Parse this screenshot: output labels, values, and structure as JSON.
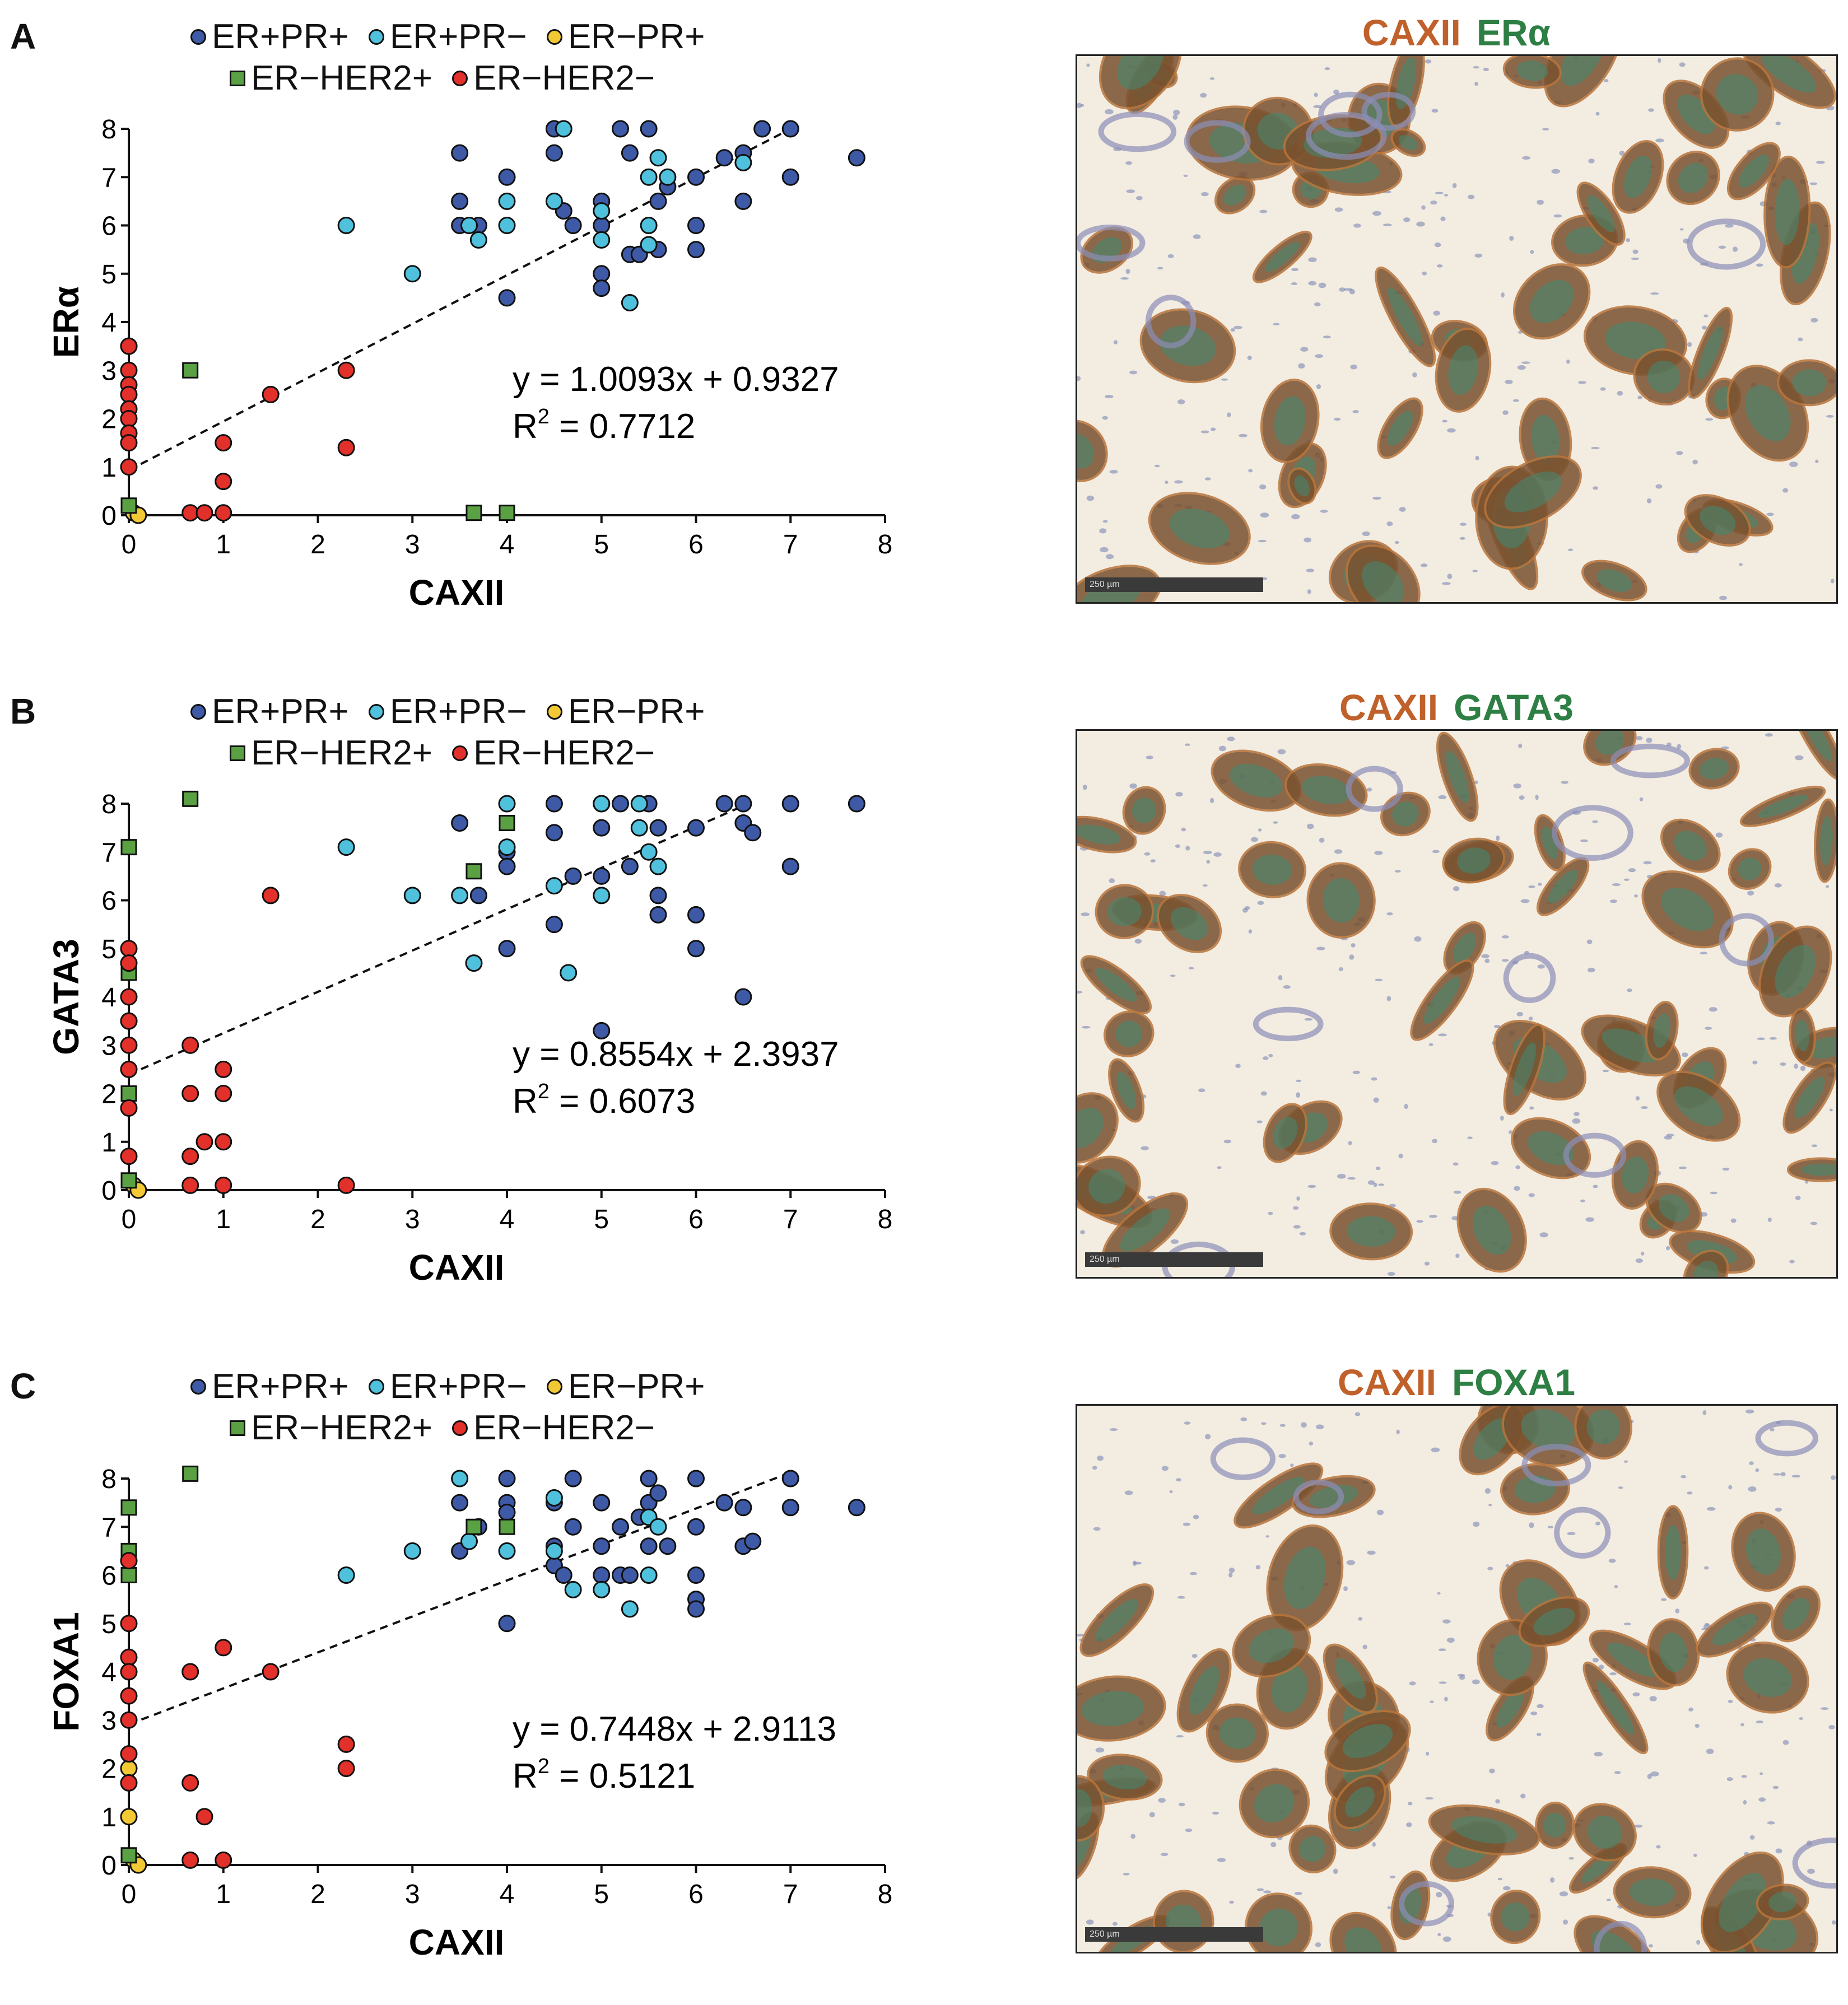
{
  "colors": {
    "ERpPRp": "#3e5aa6",
    "ERpPRn": "#4fc1dc",
    "ERnPRp": "#f2c935",
    "ERnHER2p": "#5aa144",
    "ERnHER2n": "#e2302a",
    "caxii_text": "#c0612b",
    "marker_text": "#2e7f44"
  },
  "legend": [
    {
      "key": "ERpPRp",
      "label": "ER+PR+",
      "shape": "circle"
    },
    {
      "key": "ERpPRn",
      "label": "ER+PR−",
      "shape": "circle"
    },
    {
      "key": "ERnPRp",
      "label": "ER−PR+",
      "shape": "circle"
    },
    {
      "key": "ERnHER2p",
      "label": "ER−HER2+",
      "shape": "square"
    },
    {
      "key": "ERnHER2n",
      "label": "ER−HER2−",
      "shape": "circle"
    }
  ],
  "panels": [
    {
      "letter": "A",
      "micro_title_a": "CAXII",
      "micro_title_b": "ERα",
      "scalebar": "250 µm"
    },
    {
      "letter": "B",
      "micro_title_a": "CAXII",
      "micro_title_b": "GATA3",
      "scalebar": "250 µm"
    },
    {
      "letter": "C",
      "micro_title_a": "CAXII",
      "micro_title_b": "FOXA1",
      "scalebar": "250 µm"
    }
  ],
  "chart_data": [
    {
      "type": "scatter",
      "xlabel": "CAXII",
      "ylabel": "ERα",
      "xlim": [
        0,
        8
      ],
      "ylim": [
        0,
        8
      ],
      "xticks": [
        "0",
        "1",
        "2",
        "3",
        "4",
        "5",
        "6",
        "7",
        "8"
      ],
      "yticks": [
        "0",
        "1",
        "2",
        "3",
        "4",
        "5",
        "6",
        "7",
        "8"
      ],
      "regression": {
        "slope": 1.0093,
        "intercept": 0.9327,
        "x_range": [
          0,
          7
        ]
      },
      "equation": "y = 1.0093x + 0.9327",
      "r2_label": "R",
      "r2_sup": "2",
      "r2_value": " = 0.7712",
      "series": [
        {
          "name": "ER+PR+",
          "key": "ERpPRp",
          "shape": "circle",
          "points": [
            [
              3.5,
              7.5
            ],
            [
              3.5,
              6.5
            ],
            [
              3.5,
              6
            ],
            [
              3.7,
              6
            ],
            [
              4,
              7
            ],
            [
              4,
              4.5
            ],
            [
              4.5,
              8
            ],
            [
              4.5,
              7.5
            ],
            [
              4.6,
              6.3
            ],
            [
              4.7,
              6
            ],
            [
              5,
              6.5
            ],
            [
              5,
              6
            ],
            [
              5,
              5
            ],
            [
              5,
              4.7
            ],
            [
              5.2,
              8
            ],
            [
              5.3,
              7.5
            ],
            [
              5.3,
              5.4
            ],
            [
              5.4,
              5.4
            ],
            [
              5.5,
              8
            ],
            [
              5.6,
              6.5
            ],
            [
              5.6,
              5.5
            ],
            [
              5.7,
              6.8
            ],
            [
              6,
              7
            ],
            [
              6,
              6
            ],
            [
              6,
              5.5
            ],
            [
              6.3,
              7.4
            ],
            [
              6.5,
              7.5
            ],
            [
              6.5,
              6.5
            ],
            [
              6.7,
              8
            ],
            [
              7,
              8
            ],
            [
              7,
              7
            ],
            [
              7.7,
              7.4
            ]
          ]
        },
        {
          "name": "ER+PR−",
          "key": "ERpPRn",
          "shape": "circle",
          "points": [
            [
              2.3,
              6
            ],
            [
              3,
              5
            ],
            [
              3.6,
              6
            ],
            [
              3.7,
              5.7
            ],
            [
              4,
              6.5
            ],
            [
              4,
              6
            ],
            [
              4.5,
              6.5
            ],
            [
              4.6,
              8
            ],
            [
              5,
              6.3
            ],
            [
              5,
              5.7
            ],
            [
              5.3,
              4.4
            ],
            [
              5.5,
              7
            ],
            [
              5.5,
              6
            ],
            [
              5.5,
              5.6
            ],
            [
              5.6,
              7.4
            ],
            [
              5.7,
              7
            ],
            [
              6.5,
              7.3
            ]
          ]
        },
        {
          "name": "ER−PR+",
          "key": "ERnPRp",
          "shape": "circle",
          "points": [
            [
              0,
              3.5
            ],
            [
              0.05,
              0.05
            ],
            [
              0.1,
              0
            ]
          ]
        },
        {
          "name": "ER−HER2+",
          "key": "ERnHER2p",
          "shape": "square",
          "points": [
            [
              0,
              0.2
            ],
            [
              0.65,
              3
            ],
            [
              3.65,
              0.05
            ],
            [
              4,
              0.05
            ]
          ]
        },
        {
          "name": "ER−HER2−",
          "key": "ERnHER2n",
          "shape": "circle",
          "points": [
            [
              0,
              3.5
            ],
            [
              0,
              3
            ],
            [
              0,
              2.7
            ],
            [
              0,
              2.5
            ],
            [
              0,
              2.2
            ],
            [
              0,
              2
            ],
            [
              0,
              1.7
            ],
            [
              0,
              1.5
            ],
            [
              0,
              1
            ],
            [
              0.65,
              0.05
            ],
            [
              0.8,
              0.05
            ],
            [
              1,
              0.05
            ],
            [
              1,
              0.7
            ],
            [
              1,
              1.5
            ],
            [
              1.5,
              2.5
            ],
            [
              2.3,
              3
            ],
            [
              2.3,
              1.4
            ]
          ]
        }
      ]
    },
    {
      "type": "scatter",
      "xlabel": "CAXII",
      "ylabel": "GATA3",
      "xlim": [
        0,
        8
      ],
      "ylim": [
        0,
        8
      ],
      "xticks": [
        "0",
        "1",
        "2",
        "3",
        "4",
        "5",
        "6",
        "7",
        "8"
      ],
      "yticks": [
        "0",
        "1",
        "2",
        "3",
        "4",
        "5",
        "6",
        "7",
        "8"
      ],
      "regression": {
        "slope": 0.8554,
        "intercept": 2.3937,
        "x_range": [
          0,
          6.5
        ]
      },
      "equation": "y = 0.8554x + 2.3937",
      "r2_label": "R",
      "r2_sup": "2",
      "r2_value": " = 0.6073",
      "series": [
        {
          "name": "ER+PR+",
          "key": "ERpPRp",
          "shape": "circle",
          "points": [
            [
              3.5,
              7.6
            ],
            [
              3.7,
              6.1
            ],
            [
              4,
              7
            ],
            [
              4,
              6.7
            ],
            [
              4,
              5
            ],
            [
              4.5,
              8
            ],
            [
              4.5,
              7.4
            ],
            [
              4.5,
              5.5
            ],
            [
              4.7,
              6.5
            ],
            [
              5,
              8
            ],
            [
              5,
              7.5
            ],
            [
              5,
              6.5
            ],
            [
              5,
              3.3
            ],
            [
              5.2,
              8
            ],
            [
              5.3,
              6.7
            ],
            [
              5.5,
              8
            ],
            [
              5.6,
              7.5
            ],
            [
              5.6,
              6.1
            ],
            [
              5.6,
              5.7
            ],
            [
              6,
              7.5
            ],
            [
              6,
              5.7
            ],
            [
              6,
              5
            ],
            [
              6.3,
              8
            ],
            [
              6.5,
              8
            ],
            [
              6.5,
              7.6
            ],
            [
              6.5,
              4
            ],
            [
              6.6,
              7.4
            ],
            [
              7,
              8
            ],
            [
              7,
              6.7
            ],
            [
              7.7,
              8
            ]
          ]
        },
        {
          "name": "ER+PR−",
          "key": "ERpPRn",
          "shape": "circle",
          "points": [
            [
              2.3,
              7.1
            ],
            [
              3,
              6.1
            ],
            [
              3.5,
              6.1
            ],
            [
              3.65,
              4.7
            ],
            [
              4,
              8
            ],
            [
              4,
              7.1
            ],
            [
              4.5,
              6.3
            ],
            [
              4.65,
              4.5
            ],
            [
              5,
              8
            ],
            [
              5,
              6.1
            ],
            [
              5.4,
              8
            ],
            [
              5.4,
              7.5
            ],
            [
              5.5,
              7
            ],
            [
              5.6,
              6.7
            ]
          ]
        },
        {
          "name": "ER−PR+",
          "key": "ERnPRp",
          "shape": "circle",
          "points": [
            [
              0,
              3.5
            ],
            [
              0.05,
              0.1
            ],
            [
              0.1,
              0
            ]
          ]
        },
        {
          "name": "ER−HER2+",
          "key": "ERnHER2p",
          "shape": "square",
          "points": [
            [
              0,
              7.1
            ],
            [
              0,
              4.5
            ],
            [
              0,
              2
            ],
            [
              0,
              0.2
            ],
            [
              0.65,
              8.1
            ],
            [
              3.65,
              6.6
            ],
            [
              4,
              7.6
            ]
          ]
        },
        {
          "name": "ER−HER2−",
          "key": "ERnHER2n",
          "shape": "circle",
          "points": [
            [
              0,
              5
            ],
            [
              0,
              4.7
            ],
            [
              0,
              4
            ],
            [
              0,
              3.5
            ],
            [
              0,
              3
            ],
            [
              0,
              2.5
            ],
            [
              0,
              1.7
            ],
            [
              0,
              0.7
            ],
            [
              0.65,
              3
            ],
            [
              0.65,
              2
            ],
            [
              0.65,
              0.7
            ],
            [
              0.65,
              0.1
            ],
            [
              0.8,
              1
            ],
            [
              1,
              2.5
            ],
            [
              1,
              2
            ],
            [
              1,
              1
            ],
            [
              1,
              0.1
            ],
            [
              1.5,
              6.1
            ],
            [
              2.3,
              0.1
            ]
          ]
        }
      ]
    },
    {
      "type": "scatter",
      "xlabel": "CAXII",
      "ylabel": "FOXA1",
      "xlim": [
        0,
        8
      ],
      "ylim": [
        0,
        8
      ],
      "xticks": [
        "0",
        "1",
        "2",
        "3",
        "4",
        "5",
        "6",
        "7",
        "8"
      ],
      "yticks": [
        "0",
        "1",
        "2",
        "3",
        "4",
        "5",
        "6",
        "7",
        "8"
      ],
      "regression": {
        "slope": 0.7448,
        "intercept": 2.9113,
        "x_range": [
          0,
          7
        ]
      },
      "equation": "y = 0.7448x + 2.9113",
      "r2_label": "R",
      "r2_sup": "2",
      "r2_value": " = 0.5121",
      "series": [
        {
          "name": "ER+PR+",
          "key": "ERpPRp",
          "shape": "circle",
          "points": [
            [
              3.5,
              7.5
            ],
            [
              3.5,
              6.5
            ],
            [
              3.7,
              7
            ],
            [
              4,
              8
            ],
            [
              4,
              7.5
            ],
            [
              4,
              7.3
            ],
            [
              4,
              5
            ],
            [
              4.5,
              7.5
            ],
            [
              4.5,
              6.6
            ],
            [
              4.5,
              6.2
            ],
            [
              4.6,
              6
            ],
            [
              4.7,
              8
            ],
            [
              4.7,
              7
            ],
            [
              5,
              7.5
            ],
            [
              5,
              6.6
            ],
            [
              5,
              6
            ],
            [
              5.2,
              7
            ],
            [
              5.2,
              6
            ],
            [
              5.3,
              6
            ],
            [
              5.4,
              7.2
            ],
            [
              5.5,
              8
            ],
            [
              5.5,
              7.5
            ],
            [
              5.5,
              6.6
            ],
            [
              5.6,
              7.7
            ],
            [
              5.7,
              6.6
            ],
            [
              6,
              8
            ],
            [
              6,
              7
            ],
            [
              6,
              6
            ],
            [
              6,
              5.5
            ],
            [
              6,
              5.3
            ],
            [
              6.3,
              7.5
            ],
            [
              6.5,
              7.4
            ],
            [
              6.5,
              6.6
            ],
            [
              6.6,
              6.7
            ],
            [
              7,
              8
            ],
            [
              7,
              7.4
            ],
            [
              7.7,
              7.4
            ]
          ]
        },
        {
          "name": "ER+PR−",
          "key": "ERpPRn",
          "shape": "circle",
          "points": [
            [
              2.3,
              6
            ],
            [
              3,
              6.5
            ],
            [
              3.5,
              8
            ],
            [
              3.6,
              6.7
            ],
            [
              4,
              6.5
            ],
            [
              4.5,
              7.6
            ],
            [
              4.5,
              6.5
            ],
            [
              4.7,
              5.7
            ],
            [
              5,
              5.7
            ],
            [
              5.3,
              5.3
            ],
            [
              5.5,
              7.2
            ],
            [
              5.5,
              6
            ],
            [
              5.6,
              7
            ]
          ]
        },
        {
          "name": "ER−PR+",
          "key": "ERnPRp",
          "shape": "circle",
          "points": [
            [
              0,
              2
            ],
            [
              0,
              1
            ],
            [
              0.05,
              0.1
            ],
            [
              0.1,
              0
            ]
          ]
        },
        {
          "name": "ER−HER2+",
          "key": "ERnHER2p",
          "shape": "square",
          "points": [
            [
              0,
              7.4
            ],
            [
              0,
              6.5
            ],
            [
              0,
              6
            ],
            [
              0,
              0.2
            ],
            [
              0.65,
              8.1
            ],
            [
              3.65,
              7
            ],
            [
              4,
              7
            ]
          ]
        },
        {
          "name": "ER−HER2−",
          "key": "ERnHER2n",
          "shape": "circle",
          "points": [
            [
              0,
              6.3
            ],
            [
              0,
              5
            ],
            [
              0,
              4.3
            ],
            [
              0,
              4
            ],
            [
              0,
              3.5
            ],
            [
              0,
              3
            ],
            [
              0,
              2.3
            ],
            [
              0,
              1.7
            ],
            [
              0.65,
              4
            ],
            [
              0.65,
              1.7
            ],
            [
              0.65,
              0.1
            ],
            [
              0.8,
              1
            ],
            [
              1,
              4.5
            ],
            [
              1,
              0.1
            ],
            [
              1.5,
              4
            ],
            [
              2.3,
              2.5
            ],
            [
              2.3,
              2
            ]
          ]
        }
      ]
    }
  ]
}
